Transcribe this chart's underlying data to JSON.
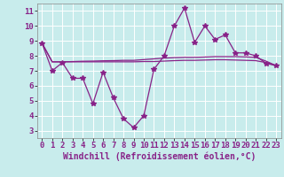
{
  "line1_x": [
    0,
    1,
    2,
    3,
    4,
    5,
    6,
    7,
    8,
    9,
    10,
    11,
    12,
    13,
    14,
    15,
    16,
    17,
    18,
    19,
    20,
    21,
    22,
    23
  ],
  "line1_y": [
    8.85,
    7.0,
    7.55,
    6.5,
    6.5,
    4.8,
    6.9,
    5.2,
    3.8,
    3.2,
    4.0,
    7.1,
    8.0,
    10.0,
    11.2,
    8.9,
    10.0,
    9.1,
    9.4,
    8.2,
    8.2,
    8.0,
    7.5,
    7.35
  ],
  "line2_x": [
    0,
    1,
    2,
    3,
    4,
    5,
    6,
    7,
    8,
    9,
    10,
    11,
    12,
    13,
    14,
    15,
    16,
    17,
    18,
    19,
    20,
    21,
    22,
    23
  ],
  "line2_y": [
    8.85,
    7.6,
    7.6,
    7.62,
    7.64,
    7.65,
    7.67,
    7.68,
    7.7,
    7.7,
    7.75,
    7.8,
    7.85,
    7.88,
    7.9,
    7.9,
    7.92,
    7.95,
    7.95,
    7.95,
    7.93,
    7.9,
    7.65,
    7.35
  ],
  "line3_x": [
    0,
    1,
    2,
    3,
    4,
    5,
    6,
    7,
    8,
    9,
    10,
    11,
    12,
    13,
    14,
    15,
    16,
    17,
    18,
    19,
    20,
    21,
    22,
    23
  ],
  "line3_y": [
    8.85,
    7.6,
    7.6,
    7.6,
    7.6,
    7.6,
    7.6,
    7.6,
    7.6,
    7.6,
    7.62,
    7.62,
    7.65,
    7.68,
    7.7,
    7.7,
    7.72,
    7.74,
    7.74,
    7.72,
    7.7,
    7.68,
    7.55,
    7.35
  ],
  "line_color": "#882288",
  "bg_color": "#c8ecec",
  "grid_color": "#ffffff",
  "xlabel": "Windchill (Refroidissement éolien,°C)",
  "xlim": [
    -0.5,
    23.5
  ],
  "ylim": [
    2.5,
    11.5
  ],
  "yticks": [
    3,
    4,
    5,
    6,
    7,
    8,
    9,
    10,
    11
  ],
  "xticks": [
    0,
    1,
    2,
    3,
    4,
    5,
    6,
    7,
    8,
    9,
    10,
    11,
    12,
    13,
    14,
    15,
    16,
    17,
    18,
    19,
    20,
    21,
    22,
    23
  ],
  "marker": "*",
  "marker_size": 4,
  "linewidth": 0.9,
  "xlabel_fontsize": 7,
  "tick_fontsize": 6.5
}
